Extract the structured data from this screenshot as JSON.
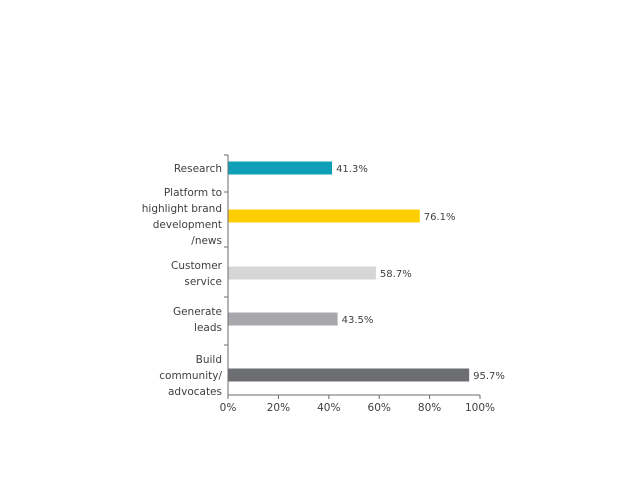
{
  "chart_data": {
    "type": "bar",
    "orientation": "horizontal",
    "categories": [
      "Research",
      "Platform to highlight brand development /news",
      "Customer service",
      "Generate leads",
      "Build community/ advocates"
    ],
    "category_label_lines": [
      [
        "Research"
      ],
      [
        "Platform to",
        "highlight brand",
        "development",
        "/news"
      ],
      [
        "Customer",
        "service"
      ],
      [
        "Generate",
        "leads"
      ],
      [
        "Build",
        "community/",
        "advocates"
      ]
    ],
    "values": [
      41.3,
      76.1,
      58.7,
      43.5,
      95.7
    ],
    "value_labels": [
      "41.3%",
      "76.1%",
      "58.7%",
      "43.5%",
      "95.7%"
    ],
    "colors": [
      "#0fa0b9",
      "#fccf00",
      "#d6d6d6",
      "#a8a8ac",
      "#6d6e71"
    ],
    "xlim": [
      0,
      100
    ],
    "x_ticks": [
      0,
      20,
      40,
      60,
      80,
      100
    ],
    "x_tick_labels": [
      "0%",
      "20%",
      "40%",
      "60%",
      "80%",
      "100%"
    ],
    "grid": false,
    "legend": "none",
    "title": "",
    "xlabel": "",
    "ylabel": ""
  }
}
